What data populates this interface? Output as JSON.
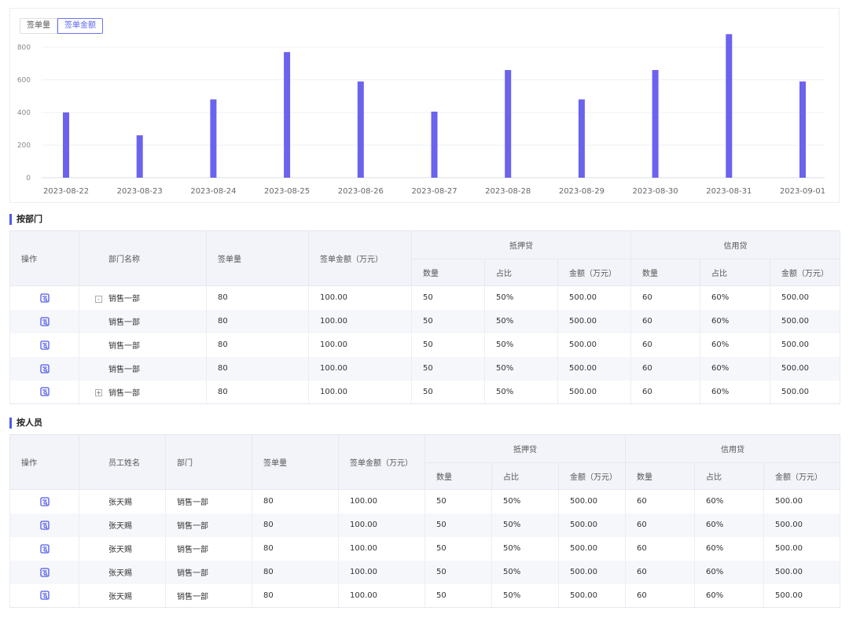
{
  "tabs": {
    "count_label": "签单量",
    "amount_label": "签单金额"
  },
  "colors": {
    "bar": "#6b63ee",
    "accent": "#4f5ae8"
  },
  "icons": {
    "view": "view-report-icon"
  },
  "chart_data": {
    "type": "bar",
    "categories": [
      "2023-08-22",
      "2023-08-23",
      "2023-08-24",
      "2023-08-25",
      "2023-08-26",
      "2023-08-27",
      "2023-08-28",
      "2023-08-29",
      "2023-08-30",
      "2023-08-31",
      "2023-09-01"
    ],
    "values": [
      400,
      260,
      480,
      770,
      590,
      405,
      660,
      480,
      660,
      880,
      590
    ],
    "yticks": [
      "0",
      "200",
      "400",
      "600",
      "800"
    ],
    "ylim": [
      0,
      800
    ],
    "title": "",
    "xlabel": "",
    "ylabel": ""
  },
  "dept": {
    "title": "按部门",
    "headers": {
      "op": "操作",
      "name": "部门名称",
      "count": "签单量",
      "amount": "签单金额（万元）",
      "mortgage": "抵押贷",
      "credit": "信用贷",
      "qty": "数量",
      "ratio": "占比",
      "amt": "金额（万元）"
    },
    "rows": [
      {
        "toggle": "-",
        "name": "销售一部",
        "count": "80",
        "amount": "100.00",
        "m_qty": "50",
        "m_ratio": "50%",
        "m_amt": "500.00",
        "c_qty": "60",
        "c_ratio": "60%",
        "c_amt": "500.00"
      },
      {
        "toggle": "",
        "name": "销售一部",
        "count": "80",
        "amount": "100.00",
        "m_qty": "50",
        "m_ratio": "50%",
        "m_amt": "500.00",
        "c_qty": "60",
        "c_ratio": "60%",
        "c_amt": "500.00"
      },
      {
        "toggle": "",
        "name": "销售一部",
        "count": "80",
        "amount": "100.00",
        "m_qty": "50",
        "m_ratio": "50%",
        "m_amt": "500.00",
        "c_qty": "60",
        "c_ratio": "60%",
        "c_amt": "500.00"
      },
      {
        "toggle": "",
        "name": "销售一部",
        "count": "80",
        "amount": "100.00",
        "m_qty": "50",
        "m_ratio": "50%",
        "m_amt": "500.00",
        "c_qty": "60",
        "c_ratio": "60%",
        "c_amt": "500.00"
      },
      {
        "toggle": "+",
        "name": "销售一部",
        "count": "80",
        "amount": "100.00",
        "m_qty": "50",
        "m_ratio": "50%",
        "m_amt": "500.00",
        "c_qty": "60",
        "c_ratio": "60%",
        "c_amt": "500.00"
      }
    ]
  },
  "staff": {
    "title": "按人员",
    "headers": {
      "op": "操作",
      "name": "员工姓名",
      "dept": "部门",
      "count": "签单量",
      "amount": "签单金额（万元）",
      "mortgage": "抵押贷",
      "credit": "信用贷",
      "qty": "数量",
      "ratio": "占比",
      "amt": "金额（万元）"
    },
    "rows": [
      {
        "name": "张天赐",
        "dept": "销售一部",
        "count": "80",
        "amount": "100.00",
        "m_qty": "50",
        "m_ratio": "50%",
        "m_amt": "500.00",
        "c_qty": "60",
        "c_ratio": "60%",
        "c_amt": "500.00"
      },
      {
        "name": "张天赐",
        "dept": "销售一部",
        "count": "80",
        "amount": "100.00",
        "m_qty": "50",
        "m_ratio": "50%",
        "m_amt": "500.00",
        "c_qty": "60",
        "c_ratio": "60%",
        "c_amt": "500.00"
      },
      {
        "name": "张天赐",
        "dept": "销售一部",
        "count": "80",
        "amount": "100.00",
        "m_qty": "50",
        "m_ratio": "50%",
        "m_amt": "500.00",
        "c_qty": "60",
        "c_ratio": "60%",
        "c_amt": "500.00"
      },
      {
        "name": "张天赐",
        "dept": "销售一部",
        "count": "80",
        "amount": "100.00",
        "m_qty": "50",
        "m_ratio": "50%",
        "m_amt": "500.00",
        "c_qty": "60",
        "c_ratio": "60%",
        "c_amt": "500.00"
      },
      {
        "name": "张天赐",
        "dept": "销售一部",
        "count": "80",
        "amount": "100.00",
        "m_qty": "50",
        "m_ratio": "50%",
        "m_amt": "500.00",
        "c_qty": "60",
        "c_ratio": "60%",
        "c_amt": "500.00"
      }
    ]
  }
}
